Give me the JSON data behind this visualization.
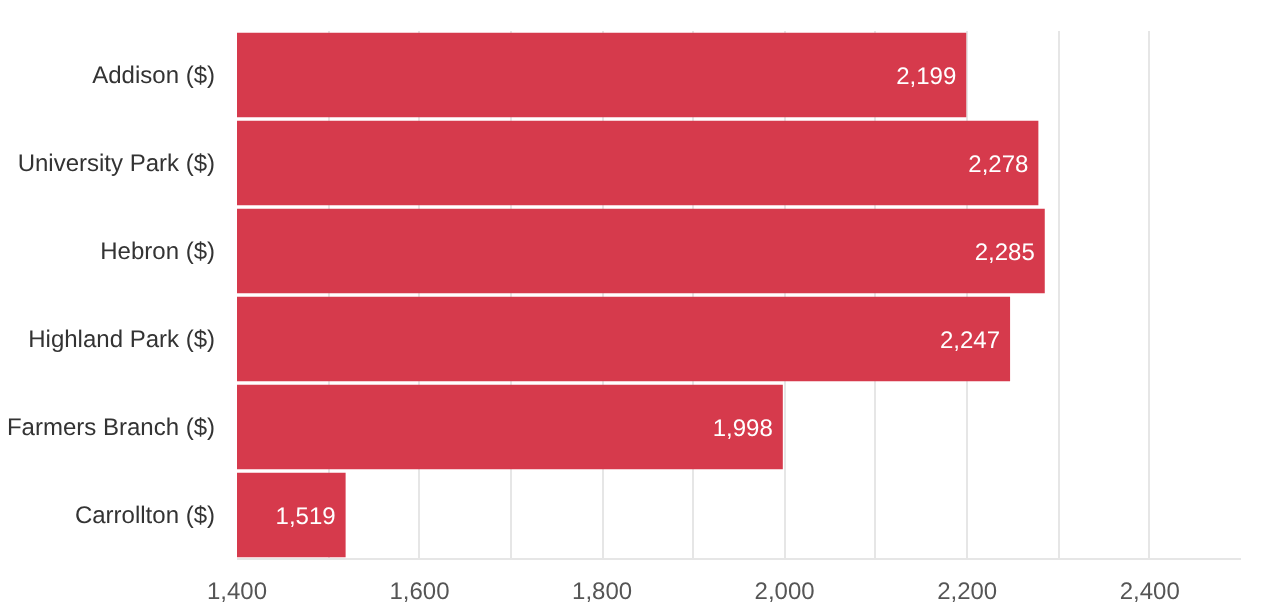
{
  "chart_data": {
    "type": "bar",
    "orientation": "horizontal",
    "categories": [
      "Addison ($)",
      "University Park ($)",
      "Hebron ($)",
      "Highland Park ($)",
      "Farmers Branch ($)",
      "Carrollton ($)"
    ],
    "values": [
      2199,
      2278,
      2285,
      2247,
      1998,
      1519
    ],
    "color": "#d63a4c",
    "value_labels": [
      "2,199",
      "2,278",
      "2,285",
      "2,247",
      "1,998",
      "1,519"
    ],
    "xlim": [
      1400,
      2500
    ],
    "xticks": [
      {
        "value": 1400,
        "label": "1,400"
      },
      {
        "value": 1500,
        "label": null
      },
      {
        "value": 1600,
        "label": "1,600"
      },
      {
        "value": 1700,
        "label": null
      },
      {
        "value": 1800,
        "label": "1,800"
      },
      {
        "value": 1900,
        "label": null
      },
      {
        "value": 2000,
        "label": "2,000"
      },
      {
        "value": 2100,
        "label": null
      },
      {
        "value": 2200,
        "label": "2,200"
      },
      {
        "value": 2300,
        "label": null
      },
      {
        "value": 2400,
        "label": "2,400"
      }
    ],
    "grid": "x"
  }
}
